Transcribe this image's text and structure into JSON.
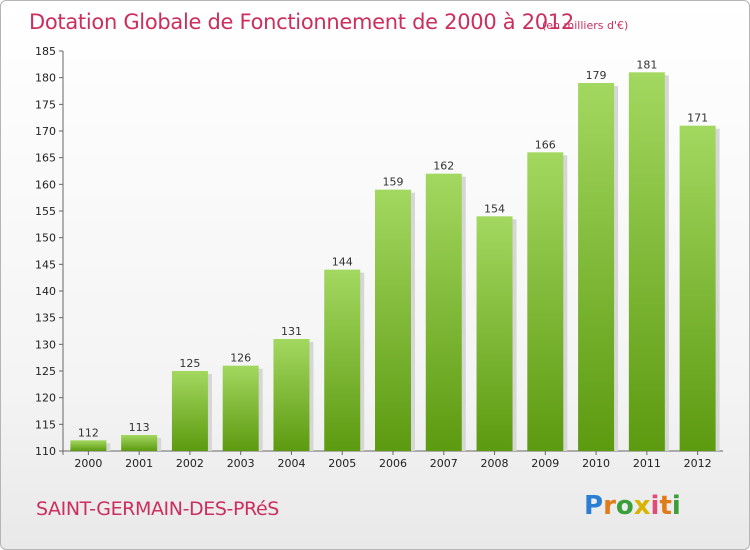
{
  "title": "Dotation Globale de Fonctionnement de 2000 à 2012",
  "subtitle": "(en milliers d'€)",
  "commune": "SAINT-GERMAIN-DES-PRéS",
  "logo": {
    "text": "Proxiti",
    "letter_colors": [
      "#2a7fd4",
      "#e07b1a",
      "#3a9e3a",
      "#d6b400",
      "#e04b7a",
      "#e07b1a",
      "#3a9e3a"
    ]
  },
  "colors": {
    "bar_top": "#a3d860",
    "bar_bottom": "#5c9a10",
    "shadow": "#d6d6d6",
    "title": "#cc2e5e"
  },
  "chart_data": {
    "type": "bar",
    "title": "Dotation Globale de Fonctionnement de 2000 à 2012",
    "subtitle": "(en milliers d'€)",
    "xlabel": "",
    "ylabel": "",
    "categories": [
      "2000",
      "2001",
      "2002",
      "2003",
      "2004",
      "2005",
      "2006",
      "2007",
      "2008",
      "2009",
      "2010",
      "2011",
      "2012"
    ],
    "values": [
      112,
      113,
      125,
      126,
      131,
      144,
      159,
      162,
      154,
      166,
      179,
      181,
      171
    ],
    "ylim": [
      110,
      185
    ],
    "yticks": [
      110,
      115,
      120,
      125,
      130,
      135,
      140,
      145,
      150,
      155,
      160,
      165,
      170,
      175,
      180,
      185
    ],
    "grid": false,
    "data_labels": true
  }
}
